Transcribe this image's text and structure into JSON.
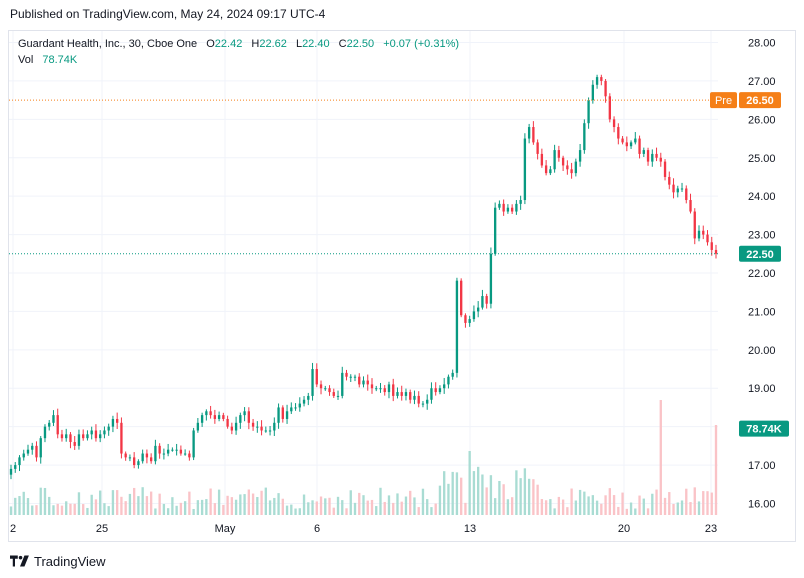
{
  "header": {
    "published": "Published on TradingView.com, May 24, 2024 09:17 UTC-4"
  },
  "legend": {
    "symbol": "Guardant Health, Inc., 30, Cboe One",
    "open_label": "O",
    "open": "22.42",
    "high_label": "H",
    "high": "22.62",
    "low_label": "L",
    "low": "22.40",
    "close_label": "C",
    "close": "22.50",
    "change": "+0.07 (+0.31%)",
    "vol_label": "Vol",
    "vol_value": "78.74K"
  },
  "footer": {
    "brand": "TradingView",
    "logo_icon": "tradingview-logo-icon"
  },
  "colors": {
    "up": "#089981",
    "down": "#f23645",
    "vol_up": "#a9dcd3",
    "vol_down": "#fac3c7",
    "pre": "#f57f17",
    "grid": "#f0f3fa",
    "text": "#131722"
  },
  "chart_data": {
    "type": "candlestick",
    "symbol": "Guardant Health, Inc.",
    "interval": "30",
    "exchange": "Cboe One",
    "x_tick_labels": [
      "2",
      "25",
      "May",
      "6",
      "13",
      "20",
      "23"
    ],
    "y_ticks": [
      "16.00",
      "17.00",
      "18.00",
      "19.00",
      "20.00",
      "21.00",
      "22.00",
      "23.00",
      "24.00",
      "25.00",
      "26.00",
      "27.00",
      "28.00"
    ],
    "ylim": [
      15.7,
      28.3
    ],
    "price_tags": [
      {
        "label": "Pre",
        "value": "26.50",
        "price": 26.5
      },
      {
        "label": "",
        "value": "22.50",
        "price": 22.5
      },
      {
        "label": "",
        "value": "78.74K",
        "price": 17.95,
        "kind": "volume"
      }
    ],
    "closes": [
      16.9,
      17.0,
      17.2,
      17.3,
      17.4,
      17.5,
      17.2,
      17.7,
      18.0,
      18.1,
      18.3,
      17.8,
      17.7,
      17.8,
      17.6,
      17.5,
      17.8,
      17.7,
      17.8,
      17.9,
      17.7,
      17.8,
      17.9,
      18.0,
      18.2,
      18.1,
      17.3,
      17.2,
      17.2,
      17.0,
      17.1,
      17.3,
      17.2,
      17.1,
      17.5,
      17.3,
      17.3,
      17.4,
      17.4,
      17.4,
      17.3,
      17.3,
      17.2,
      17.9,
      18.1,
      18.3,
      18.4,
      18.3,
      18.2,
      18.3,
      18.2,
      18.0,
      17.9,
      18.1,
      18.3,
      18.4,
      18.1,
      18.0,
      18.0,
      17.9,
      17.9,
      17.9,
      18.1,
      18.5,
      18.2,
      18.4,
      18.5,
      18.5,
      18.6,
      18.7,
      18.8,
      19.5,
      19.1,
      19.0,
      19.0,
      18.9,
      18.8,
      18.8,
      19.4,
      19.3,
      19.3,
      19.3,
      19.1,
      19.2,
      19.1,
      19.0,
      19.0,
      19.0,
      18.9,
      19.1,
      18.8,
      18.9,
      18.8,
      18.9,
      18.7,
      18.8,
      18.6,
      18.6,
      18.7,
      19.0,
      18.9,
      19.0,
      19.1,
      19.3,
      19.4,
      21.8,
      20.9,
      20.7,
      20.8,
      21.0,
      21.1,
      21.4,
      21.2,
      22.5,
      23.7,
      23.8,
      23.6,
      23.7,
      23.6,
      23.8,
      23.9,
      25.5,
      25.8,
      25.4,
      25.1,
      24.8,
      24.6,
      24.7,
      25.2,
      25.0,
      24.8,
      24.7,
      24.6,
      24.9,
      25.2,
      25.9,
      26.5,
      26.9,
      27.1,
      27.0,
      26.6,
      26.0,
      25.8,
      25.5,
      25.4,
      25.3,
      25.4,
      25.5,
      25.1,
      25.2,
      24.9,
      25.1,
      25.0,
      24.9,
      24.5,
      24.3,
      24.1,
      24.2,
      24.2,
      23.9,
      23.6,
      22.9,
      23.1,
      23.0,
      22.8,
      22.6,
      22.5
    ]
  }
}
